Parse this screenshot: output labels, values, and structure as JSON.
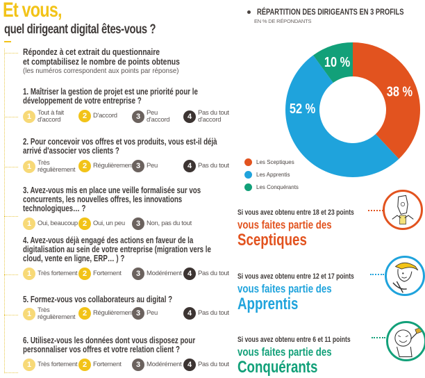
{
  "header": {
    "title": "Et vous,",
    "subtitle": "quel dirigeant digital êtes-vous ?"
  },
  "intro": {
    "line1": "Répondez à cet extrait du questionnaire",
    "line2": "et comptabilisez le nombre de points obtenus",
    "line3": "(les numéros correspondent aux points par réponse)"
  },
  "questions": [
    {
      "text": "1. Maîtriser la gestion de projet est une priorité pour le développement de votre entreprise ?",
      "answers": [
        {
          "points": "1",
          "label": "Tout à fait d'accord"
        },
        {
          "points": "2",
          "label": "D'accord"
        },
        {
          "points": "3",
          "label": "Peu d'accord"
        },
        {
          "points": "4",
          "label": "Pas du tout d'accord"
        }
      ]
    },
    {
      "text": "2. Pour concevoir vos offres et vos produits, vous est-il déjà arrivé d'associer vos clients ?",
      "answers": [
        {
          "points": "1",
          "label": "Très régulièrement"
        },
        {
          "points": "2",
          "label": "Régulièrement"
        },
        {
          "points": "3",
          "label": "Peu"
        },
        {
          "points": "4",
          "label": "Pas du tout"
        }
      ]
    },
    {
      "text": "3. Avez-vous mis en place une veille formalisée sur vos concurrents, les nouvelles offres, les innovations technologiques… ?",
      "answers": [
        {
          "points": "1",
          "label": "Oui, beaucoup"
        },
        {
          "points": "2",
          "label": "Oui, un peu"
        },
        {
          "points": "3",
          "label": "Non, pas du tout"
        }
      ]
    },
    {
      "text": "4. Avez-vous déjà engagé des actions en faveur de la digitalisation au sein de votre entreprise (migration vers le cloud, vente en ligne, ERP… ) ?",
      "answers": [
        {
          "points": "1",
          "label": "Très fortement"
        },
        {
          "points": "2",
          "label": "Fortement"
        },
        {
          "points": "3",
          "label": "Modérément"
        },
        {
          "points": "4",
          "label": "Pas du tout"
        }
      ]
    },
    {
      "text": "5. Formez-vous vos collaborateurs au digital ?",
      "answers": [
        {
          "points": "1",
          "label": "Très régulièrement"
        },
        {
          "points": "2",
          "label": "Régulièrement"
        },
        {
          "points": "3",
          "label": "Peu"
        },
        {
          "points": "4",
          "label": "Pas du tout"
        }
      ]
    },
    {
      "text": "6. Utilisez-vous les données dont vous disposez pour personnaliser vos offres et votre relation client ?",
      "answers": [
        {
          "points": "1",
          "label": "Très fortement"
        },
        {
          "points": "2",
          "label": "Fortement"
        },
        {
          "points": "3",
          "label": "Modérément"
        },
        {
          "points": "4",
          "label": "Pas du tout"
        }
      ]
    }
  ],
  "chart_data": {
    "type": "pie",
    "title": "RÉPARTITION DES DIRIGEANTS EN 3 PROFILS",
    "subtitle": "EN % DE RÉPONDANTS",
    "categories": [
      "Les Sceptiques",
      "Les Apprentis",
      "Les Conquérants"
    ],
    "values": [
      38,
      52,
      10
    ],
    "labels": [
      "38 %",
      "52 %",
      "10 %"
    ],
    "colors": [
      "#e2531f",
      "#1fa3dc",
      "#12a079"
    ],
    "donut": true,
    "legend": "bottom-left"
  },
  "profiles": [
    {
      "condition": "Si vous avez obtenu entre 18 et 23 points",
      "lead": "vous faites partie des",
      "name": "Sceptiques",
      "color": "#e2531f"
    },
    {
      "condition": "Si vous avez obtenu entre 12 et 17 points",
      "lead": "vous faites partie des",
      "name": "Apprentis",
      "color": "#1fa3dc"
    },
    {
      "condition": "Si vous avez obtenu entre 6 et 11 points",
      "lead": "vous faites partie des",
      "name": "Conquérants",
      "color": "#12a079"
    }
  ]
}
